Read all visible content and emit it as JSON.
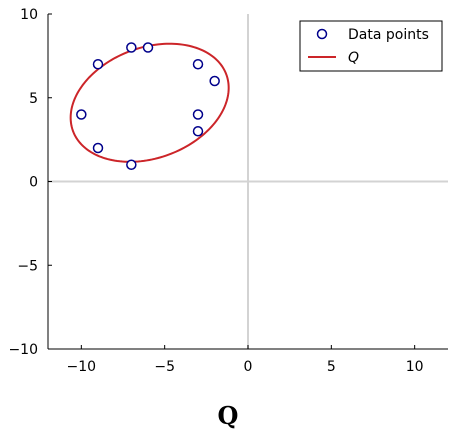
{
  "chart_data": {
    "type": "scatter",
    "title": "",
    "xlabel": "Q",
    "ylabel": "",
    "xlim": [
      -12,
      12
    ],
    "ylim": [
      -10,
      10
    ],
    "x_ticks": [
      -10,
      -5,
      0,
      5,
      10
    ],
    "y_ticks": [
      -10,
      -5,
      0,
      5,
      10
    ],
    "x_tick_labels": [
      "−10",
      "−5",
      "0",
      "5",
      "10"
    ],
    "y_tick_labels": [
      "−10",
      "−5",
      "0",
      "5",
      "10"
    ],
    "grid": false,
    "zero_lines": true,
    "legend_position": "top-right",
    "series": [
      {
        "name": "Data points",
        "kind": "scatter",
        "marker": "open-circle",
        "color": "#00008b",
        "points": [
          [
            -10,
            4
          ],
          [
            -9,
            7
          ],
          [
            -9,
            2
          ],
          [
            -7,
            8
          ],
          [
            -6,
            8
          ],
          [
            -7,
            1
          ],
          [
            -3,
            7
          ],
          [
            -2,
            6
          ],
          [
            -3,
            4
          ],
          [
            -3,
            3
          ]
        ]
      },
      {
        "name": "Q",
        "kind": "ellipse",
        "color": "#cc2529",
        "center": [
          -5.9,
          4.7
        ],
        "semi_axes": [
          4.9,
          3.3
        ],
        "rotation_deg": 20
      }
    ]
  }
}
